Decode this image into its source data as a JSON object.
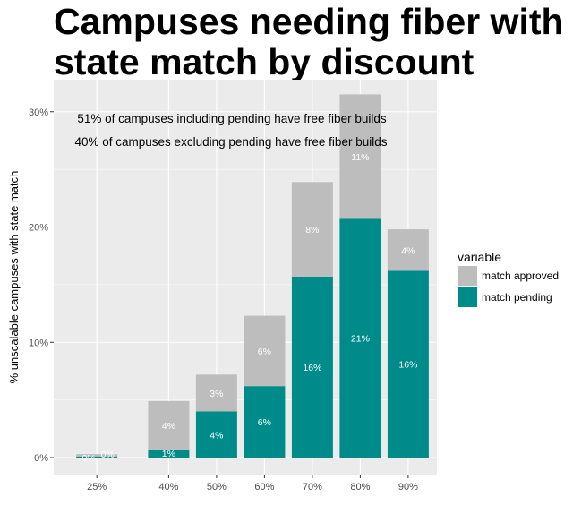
{
  "chart_data": {
    "type": "bar",
    "stacked": true,
    "title": "Campuses needing fiber with state match by discount",
    "ylabel": "% unscalable campuses with state match",
    "xlabel": "",
    "categories": [
      "25%",
      "40%",
      "50%",
      "60%",
      "70%",
      "80%",
      "90%"
    ],
    "x": [
      25,
      40,
      50,
      60,
      70,
      80,
      90
    ],
    "ylim": [
      0,
      0.32
    ],
    "yticks": [
      0,
      0.1,
      0.2,
      0.3
    ],
    "ytick_labels": [
      "0%",
      "10%",
      "20%",
      "30%"
    ],
    "grid": true,
    "legend": {
      "title": "variable",
      "position": "right"
    },
    "series": [
      {
        "name": "match approved",
        "color": "#bdbdbd",
        "values": [
          0.002,
          0.042,
          0.032,
          0.061,
          0.082,
          0.108,
          0.036
        ],
        "labels": [
          "0%",
          "4%",
          "3%",
          "6%",
          "8%",
          "11%",
          "4%"
        ]
      },
      {
        "name": "match pending",
        "color": "#008b8b",
        "values": [
          0.001,
          0.007,
          0.04,
          0.062,
          0.157,
          0.207,
          0.162
        ],
        "labels": [
          "0%",
          "1%",
          "4%",
          "6%",
          "16%",
          "21%",
          "16%"
        ]
      }
    ],
    "annotations": [
      "51% of campuses including pending have free fiber builds",
      "40% of campuses excluding pending have free fiber builds"
    ]
  }
}
